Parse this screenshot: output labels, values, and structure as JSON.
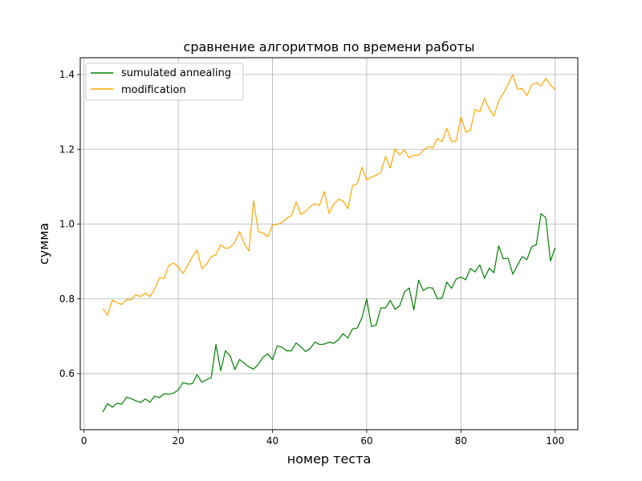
{
  "chart_data": {
    "type": "line",
    "title": "сравнение алгоритмов по времени работы",
    "xlabel": "номер теста",
    "ylabel": "сумма",
    "xlim": [
      -0.8,
      104.8
    ],
    "ylim": [
      0.45,
      1.445
    ],
    "xticks": [
      0,
      20,
      40,
      60,
      80,
      100
    ],
    "yticks": [
      0.6,
      0.8,
      1.0,
      1.2,
      1.4
    ],
    "xtick_labels": [
      "0",
      "20",
      "40",
      "60",
      "80",
      "100"
    ],
    "ytick_labels": [
      "0.6",
      "0.8",
      "1.0",
      "1.2",
      "1.4"
    ],
    "grid": true,
    "legend_position": "upper-left",
    "x": [
      4,
      5,
      6,
      7,
      8,
      9,
      10,
      11,
      12,
      13,
      14,
      15,
      16,
      17,
      18,
      19,
      20,
      21,
      22,
      23,
      24,
      25,
      26,
      27,
      28,
      29,
      30,
      31,
      32,
      33,
      34,
      35,
      36,
      37,
      38,
      39,
      40,
      41,
      42,
      43,
      44,
      45,
      46,
      47,
      48,
      49,
      50,
      51,
      52,
      53,
      54,
      55,
      56,
      57,
      58,
      59,
      60,
      61,
      62,
      63,
      64,
      65,
      66,
      67,
      68,
      69,
      70,
      71,
      72,
      73,
      74,
      75,
      76,
      77,
      78,
      79,
      80,
      81,
      82,
      83,
      84,
      85,
      86,
      87,
      88,
      89,
      90,
      91,
      92,
      93,
      94,
      95,
      96,
      97,
      98,
      99,
      100
    ],
    "series": [
      {
        "name": "sumulated annealing",
        "color": "#008000",
        "values": [
          0.497,
          0.52,
          0.51,
          0.521,
          0.518,
          0.537,
          0.533,
          0.527,
          0.523,
          0.532,
          0.524,
          0.54,
          0.536,
          0.546,
          0.545,
          0.548,
          0.556,
          0.576,
          0.572,
          0.573,
          0.597,
          0.577,
          0.584,
          0.589,
          0.678,
          0.608,
          0.661,
          0.648,
          0.611,
          0.638,
          0.628,
          0.618,
          0.612,
          0.625,
          0.644,
          0.653,
          0.637,
          0.674,
          0.671,
          0.661,
          0.661,
          0.682,
          0.672,
          0.659,
          0.667,
          0.684,
          0.678,
          0.679,
          0.684,
          0.681,
          0.691,
          0.707,
          0.695,
          0.72,
          0.722,
          0.75,
          0.8,
          0.726,
          0.73,
          0.776,
          0.776,
          0.796,
          0.772,
          0.781,
          0.818,
          0.829,
          0.77,
          0.85,
          0.822,
          0.83,
          0.829,
          0.8,
          0.802,
          0.845,
          0.828,
          0.853,
          0.858,
          0.851,
          0.881,
          0.872,
          0.891,
          0.855,
          0.882,
          0.87,
          0.942,
          0.907,
          0.909,
          0.866,
          0.89,
          0.913,
          0.905,
          0.939,
          0.945,
          1.028,
          1.017,
          0.901,
          0.937
        ]
      },
      {
        "name": "modification",
        "color": "#ffa500",
        "values": [
          0.774,
          0.756,
          0.797,
          0.79,
          0.785,
          0.798,
          0.798,
          0.811,
          0.806,
          0.815,
          0.806,
          0.826,
          0.856,
          0.855,
          0.889,
          0.896,
          0.885,
          0.868,
          0.889,
          0.913,
          0.93,
          0.881,
          0.893,
          0.913,
          0.918,
          0.944,
          0.935,
          0.937,
          0.951,
          0.98,
          0.948,
          0.928,
          1.063,
          0.98,
          0.976,
          0.966,
          0.998,
          0.999,
          1.004,
          1.016,
          1.022,
          1.059,
          1.026,
          1.033,
          1.047,
          1.054,
          1.051,
          1.087,
          1.029,
          1.053,
          1.066,
          1.062,
          1.041,
          1.103,
          1.108,
          1.152,
          1.118,
          1.126,
          1.131,
          1.138,
          1.181,
          1.15,
          1.201,
          1.185,
          1.198,
          1.177,
          1.184,
          1.184,
          1.197,
          1.207,
          1.203,
          1.229,
          1.221,
          1.256,
          1.22,
          1.223,
          1.287,
          1.246,
          1.251,
          1.307,
          1.3,
          1.336,
          1.308,
          1.289,
          1.33,
          1.349,
          1.373,
          1.4,
          1.36,
          1.363,
          1.343,
          1.373,
          1.378,
          1.37,
          1.39,
          1.372,
          1.36
        ]
      }
    ]
  }
}
